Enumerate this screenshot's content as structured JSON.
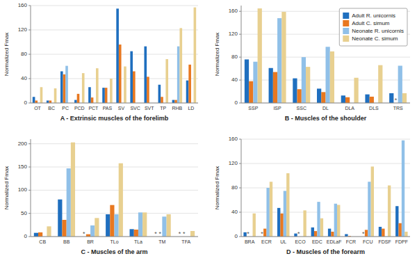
{
  "chart_data": [
    {
      "type": "bar",
      "x_label": "A - Extrinsic muscles of the forelimb",
      "y_label": "Normalized Fmax",
      "categories": [
        "OT",
        "BC",
        "PC",
        "PCD",
        "PCT",
        "PAS",
        "SV",
        "SVC",
        "SVT",
        "TP",
        "RHB",
        "LD"
      ],
      "series": [
        {
          "color": "#1f6fbf",
          "values": [
            10,
            4,
            52,
            5,
            26,
            25,
            155,
            85,
            93,
            30,
            5,
            37
          ]
        },
        {
          "color": "#e87820",
          "values": [
            4,
            4,
            47,
            15,
            9,
            25,
            96,
            52,
            43,
            10,
            5,
            63
          ]
        },
        {
          "color": "#90c0e8",
          "values": [
            0,
            0,
            61,
            0,
            0,
            0,
            0,
            0,
            0,
            0,
            93,
            0
          ]
        },
        {
          "color": "#e8d090",
          "values": [
            26,
            24,
            0,
            49,
            57,
            40,
            60,
            0,
            0,
            72,
            123,
            157
          ]
        }
      ],
      "ylim": [
        0,
        160
      ],
      "yticks": [
        0,
        40,
        80,
        120,
        160
      ],
      "grid": true
    },
    {
      "type": "bar",
      "x_label": "B - Muscles of the shoulder",
      "y_label": "Normalized Fmax",
      "categories": [
        "SSP",
        "ISP",
        "SSC",
        "DL",
        "DLA",
        "DLS",
        "TRS"
      ],
      "series": [
        {
          "name": "Adult R. unicornis",
          "color": "#1f6fbf",
          "values": [
            76,
            61,
            43,
            25,
            13,
            15,
            17
          ]
        },
        {
          "name": "Adult C. simum",
          "color": "#e87820",
          "values": [
            38,
            54,
            24,
            19,
            10,
            11,
            0
          ]
        },
        {
          "name": "Neonate R. unicornis",
          "color": "#90c0e8",
          "values": [
            72,
            148,
            80,
            98,
            0,
            0,
            65
          ]
        },
        {
          "name": "Neonate C. simum",
          "color": "#e8d090",
          "values": [
            165,
            159,
            63,
            90,
            44,
            66,
            17
          ]
        }
      ],
      "ylim": [
        0,
        170
      ],
      "yticks": [
        0,
        40,
        80,
        120,
        160
      ],
      "grid": true,
      "legend": "upper right",
      "annotations": [
        {
          "text": "*",
          "category": "TRS",
          "series": 1
        }
      ]
    },
    {
      "type": "bar",
      "x_label": "C - Muscles of the arm",
      "y_label": "Normalized Fmax",
      "categories": [
        "CB",
        "BB",
        "BR",
        "TLo",
        "TLa",
        "TM",
        "TFA"
      ],
      "series": [
        {
          "color": "#1f6fbf",
          "values": [
            8,
            80,
            0,
            48,
            16,
            0,
            0
          ]
        },
        {
          "color": "#e87820",
          "values": [
            9,
            36,
            5,
            68,
            15,
            0,
            0
          ]
        },
        {
          "color": "#90c0e8",
          "values": [
            0,
            147,
            24,
            48,
            52,
            43,
            0
          ]
        },
        {
          "color": "#e8d090",
          "values": [
            22,
            203,
            40,
            158,
            52,
            48,
            12
          ]
        }
      ],
      "ylim": [
        0,
        210
      ],
      "yticks": [
        0,
        50,
        100,
        150,
        200
      ],
      "grid": true,
      "annotations": [
        {
          "text": "*",
          "category": "BR",
          "series": 0
        },
        {
          "text": "*",
          "category": "TM",
          "series": 0
        },
        {
          "text": "*",
          "category": "TM",
          "series": 1
        },
        {
          "text": "*",
          "category": "TFA",
          "series": 0
        },
        {
          "text": "*",
          "category": "TFA",
          "series": 1
        }
      ]
    },
    {
      "type": "bar",
      "x_label": "D - Muscles of the forearm",
      "y_label": "Normalized Fmax",
      "categories": [
        "BRA",
        "ECR",
        "UL",
        "ECO",
        "EDC",
        "EDLaF",
        "FCR",
        "FCU",
        "FDSF",
        "FDPF"
      ],
      "series": [
        {
          "color": "#1f6fbf",
          "values": [
            7,
            0,
            47,
            5,
            15,
            13,
            4,
            0,
            16,
            50
          ]
        },
        {
          "color": "#e87820",
          "values": [
            0,
            13,
            38,
            0,
            9,
            8,
            1,
            11,
            13,
            22
          ]
        },
        {
          "color": "#90c0e8",
          "values": [
            0,
            80,
            75,
            0,
            57,
            54,
            0,
            90,
            0,
            158
          ]
        },
        {
          "color": "#e8d090",
          "values": [
            38,
            90,
            104,
            43,
            30,
            52,
            0,
            115,
            84,
            8
          ]
        }
      ],
      "ylim": [
        0,
        160
      ],
      "yticks": [
        0,
        40,
        80,
        120,
        160
      ],
      "grid": true,
      "annotations": [
        {
          "text": "*",
          "category": "BRA",
          "series": 1
        },
        {
          "text": "*",
          "category": "ECR",
          "series": 0
        },
        {
          "text": "*",
          "category": "ECO",
          "series": 1
        },
        {
          "text": "*",
          "category": "FCU",
          "series": 0
        }
      ]
    }
  ]
}
